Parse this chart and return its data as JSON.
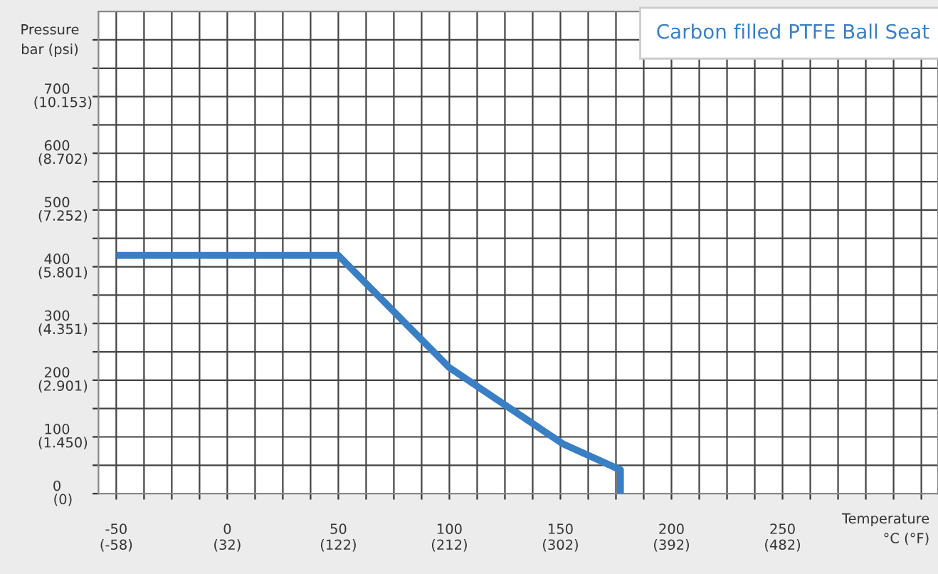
{
  "chart_data": {
    "type": "line",
    "title": "Carbon filled PTFE Ball Seat",
    "xlabel": "Temperature\n°C (°F)",
    "ylabel": "Pressure\nbar (psi)",
    "x": [
      -50,
      50,
      100,
      151,
      177,
      177
    ],
    "series": [
      {
        "color": "#3a7fc4",
        "values": [
          420,
          420,
          222,
          88,
          42,
          0
        ]
      }
    ],
    "xlim": [
      -58,
      320
    ],
    "ylim": [
      0,
      850
    ],
    "xticks": [
      -50,
      {
        "value": -37.5,
        "label": null
      },
      {
        "value": -25,
        "label": null
      },
      {
        "value": -12.5,
        "label": null
      },
      0,
      {
        "value": 12.5,
        "label": null
      },
      {
        "value": 25,
        "label": null
      },
      {
        "value": 37.5,
        "label": null
      },
      50,
      {
        "value": 62.5,
        "label": null
      },
      {
        "value": 75,
        "label": null
      },
      {
        "value": 87.5,
        "label": null
      },
      100,
      {
        "value": 112.5,
        "label": null
      },
      {
        "value": 125,
        "label": null
      },
      {
        "value": 137.5,
        "label": null
      },
      150,
      {
        "value": 162.5,
        "label": null
      },
      {
        "value": 175,
        "label": null
      },
      {
        "value": 187.5,
        "label": null
      },
      200,
      {
        "value": 212.5,
        "label": null
      },
      {
        "value": 225,
        "label": null
      },
      {
        "value": 237.5,
        "label": null
      },
      250,
      {
        "value": 262.5,
        "label": null
      },
      {
        "value": 275,
        "label": null
      },
      {
        "value": 287.5,
        "label": null
      },
      {
        "value": 300,
        "label": null
      },
      {
        "value": 312.5,
        "label": null
      }
    ],
    "yticks": [
      0,
      {
        "value": 50,
        "label": null
      },
      100,
      {
        "value": 150,
        "label": null
      },
      200,
      {
        "value": 250,
        "label": null
      },
      300,
      {
        "value": 350,
        "label": null
      },
      400,
      {
        "value": 450,
        "label": null
      },
      500,
      {
        "value": 550,
        "label": null
      },
      600,
      {
        "value": 650,
        "label": null
      },
      700,
      {
        "value": 750,
        "label": null
      },
      {
        "value": 800,
        "label": null
      }
    ],
    "x2lim": [
      -72.4,
      608
    ],
    "x2ticks": [
      {
        "value": -58,
        "label": "(-58)"
      },
      {
        "value": 32,
        "label": "(32)"
      },
      {
        "value": 122,
        "label": "(122)"
      },
      {
        "value": 212,
        "label": "(212)"
      },
      {
        "value": 302,
        "label": "(302)"
      },
      {
        "value": 392,
        "label": "(392)"
      },
      {
        "value": 482,
        "label": "(482)"
      }
    ],
    "y2lim": [
      0,
      12328
    ],
    "y2ticks": [
      {
        "value": 0,
        "label": "(0)"
      },
      {
        "value": 1450,
        "label": "(1.450)"
      },
      {
        "value": 2901,
        "label": "(2.901)"
      },
      {
        "value": 4351,
        "label": "(4.351)"
      },
      {
        "value": 5801,
        "label": "(5.801)"
      },
      {
        "value": 7252,
        "label": "(7.252)"
      },
      {
        "value": 8702,
        "label": "(8.702)"
      },
      {
        "value": 10153,
        "label": "(10.153)"
      }
    ],
    "grid": true,
    "marker": "none",
    "line_style": "solid"
  }
}
